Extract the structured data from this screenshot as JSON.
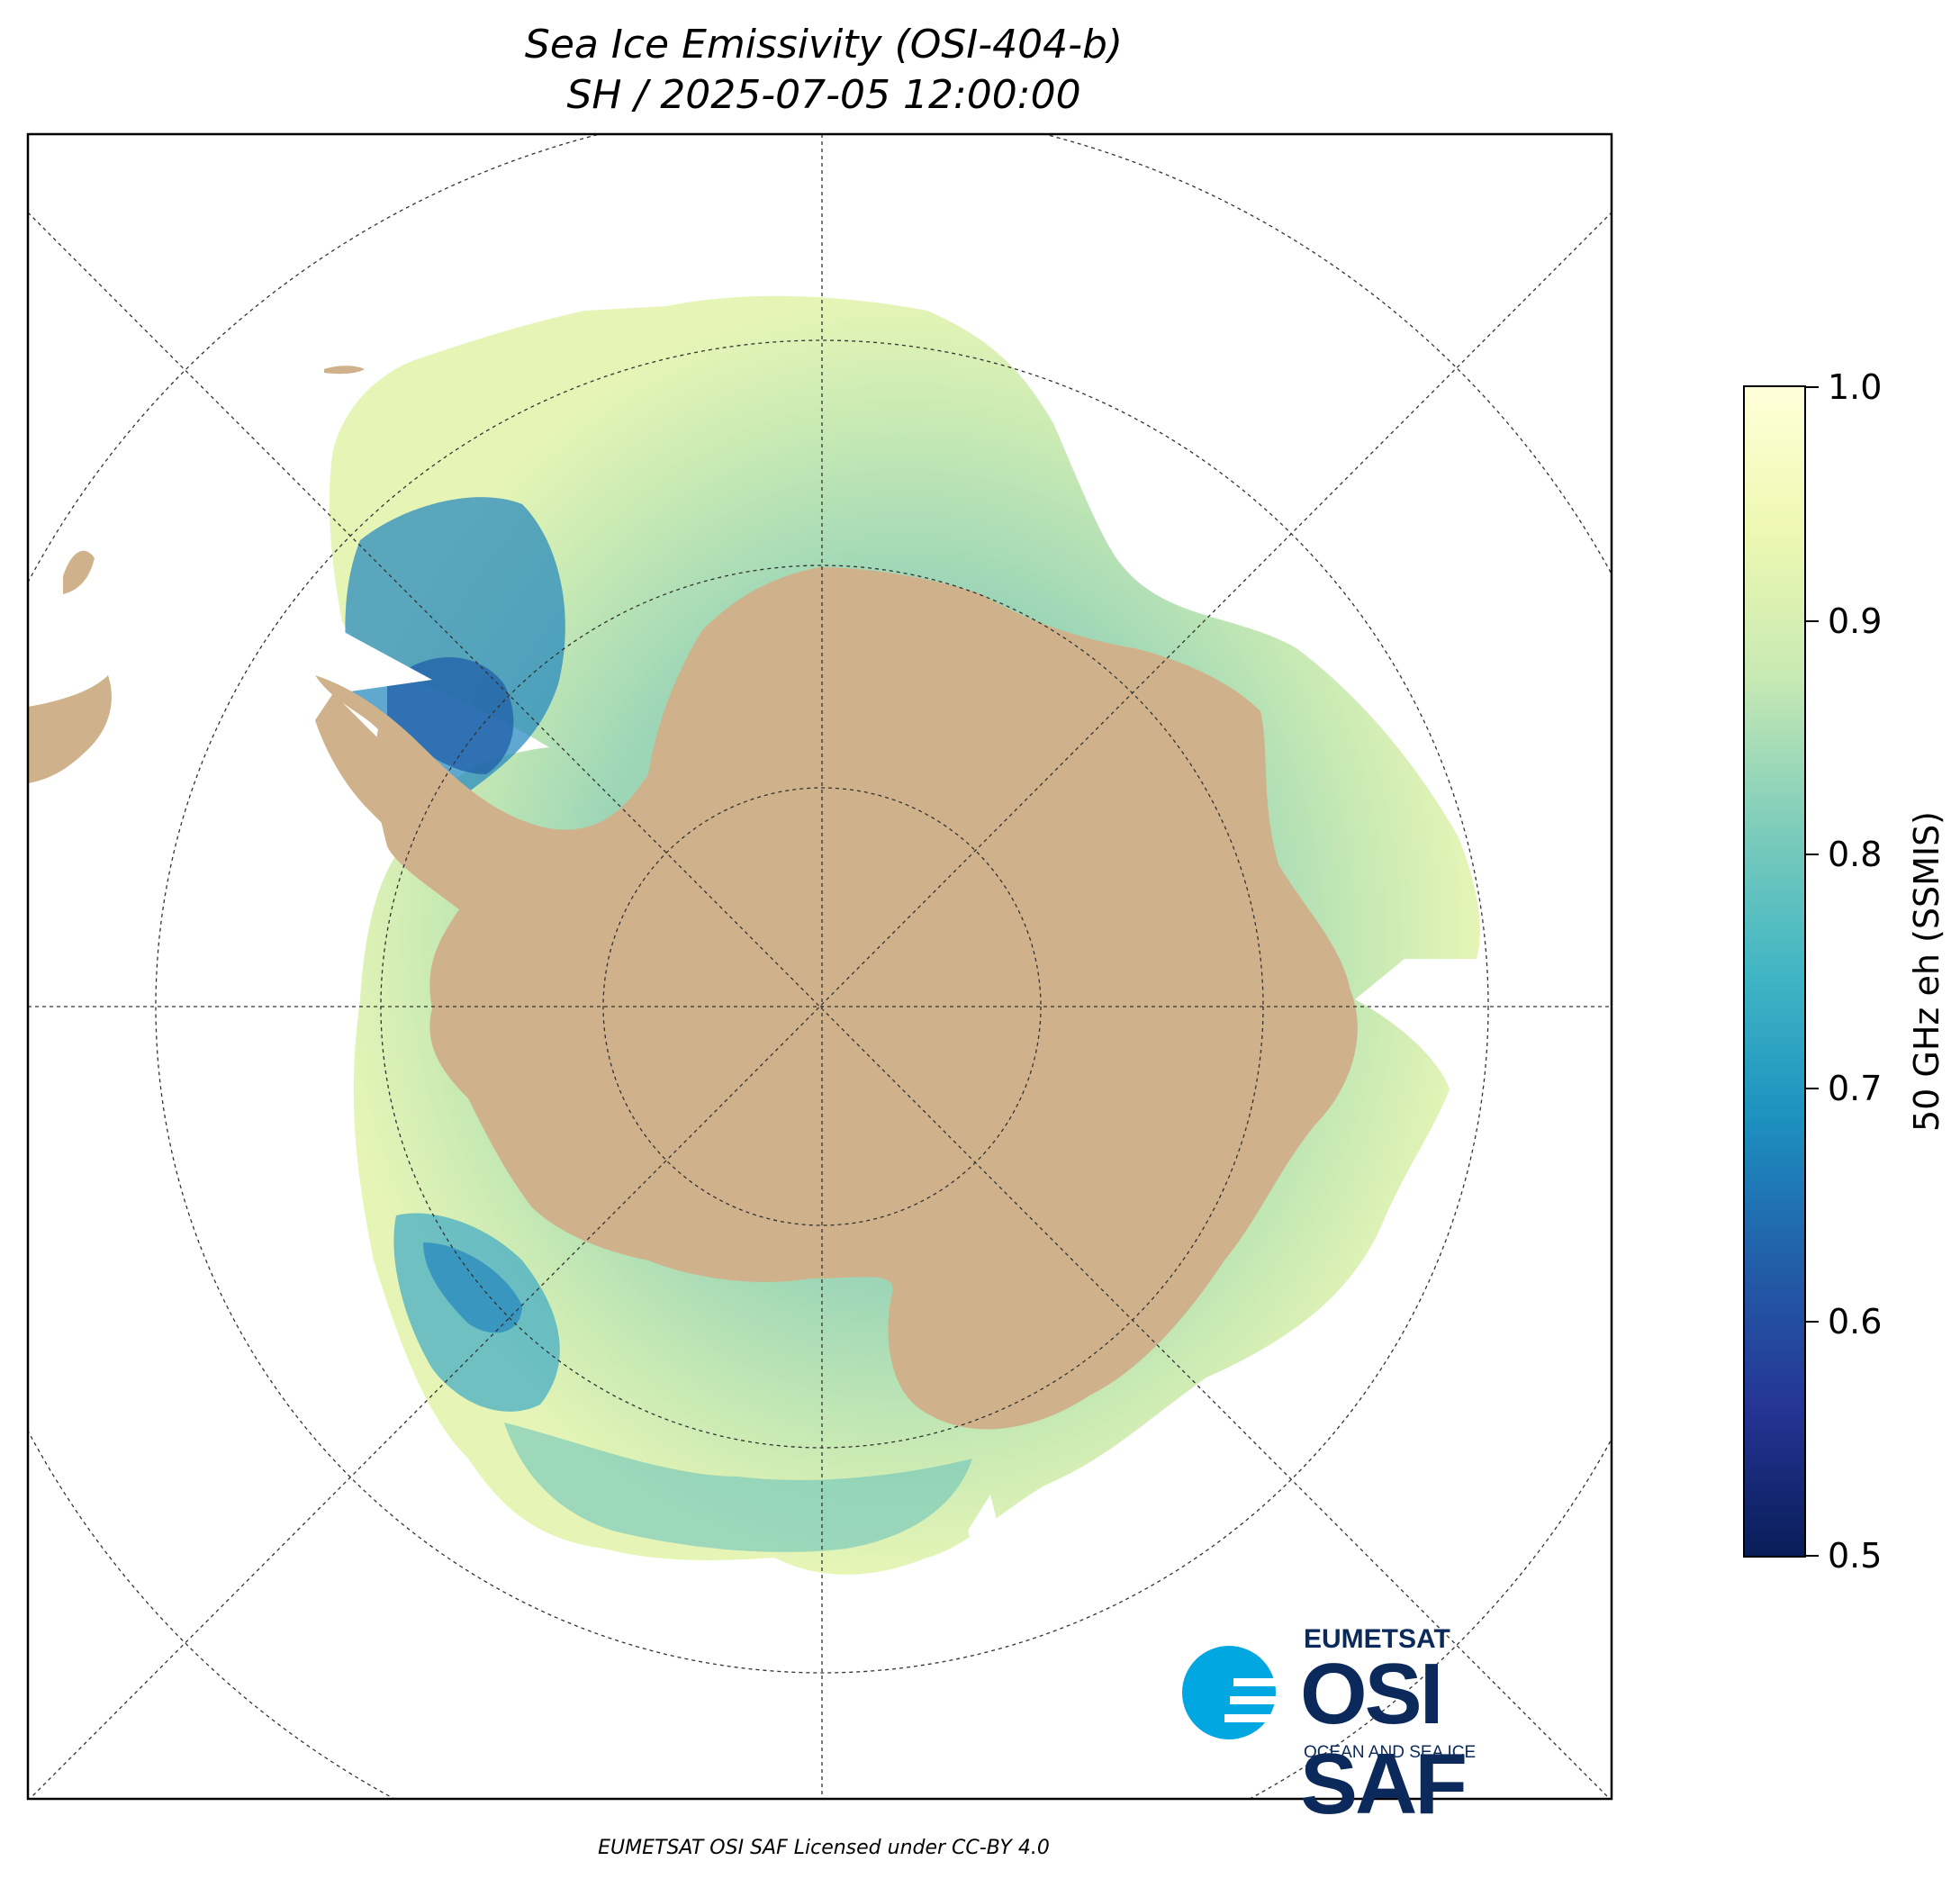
{
  "title": {
    "line1": "Sea Ice Emissivity (OSI-404-b)",
    "line2": "SH / 2025-07-05 12:00:00"
  },
  "colorbar": {
    "label": "50 GHz eh (SSMIS)",
    "min": 0.5,
    "max": 1.0,
    "ticks": [
      "0.5",
      "0.6",
      "0.7",
      "0.8",
      "0.9",
      "1.0"
    ],
    "colormap": [
      "#081d58",
      "#253494",
      "#225ea8",
      "#1d91c0",
      "#41b6c4",
      "#7fcdbb",
      "#c7e9b4",
      "#edf8b1",
      "#ffffd9"
    ]
  },
  "map": {
    "projection": "south-polar-stereographic",
    "hemisphere": "SH",
    "land_color": "#cfb28b",
    "ocean_color": "#ffffff",
    "graticule": "dashed"
  },
  "logo": {
    "org": "EUMETSAT",
    "name": "OSI SAF",
    "tagline": "OCEAN AND SEA ICE",
    "color": "#0b2a5b",
    "accent": "#00a7e1"
  },
  "footer": "EUMETSAT OSI SAF Licensed under CC-BY 4.0"
}
